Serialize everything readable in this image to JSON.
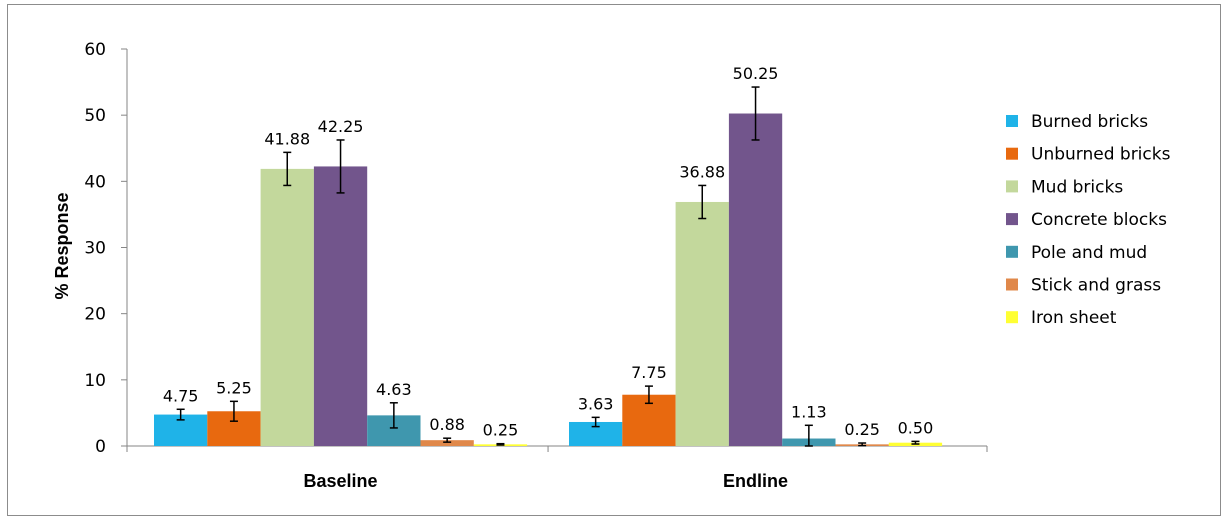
{
  "chart_data": {
    "type": "bar",
    "title": "",
    "xlabel": "",
    "ylabel": "% Response",
    "ylim": [
      0,
      60
    ],
    "yticks": [
      0,
      10,
      20,
      30,
      40,
      50,
      60
    ],
    "categories": [
      "Baseline",
      "Endline"
    ],
    "grid": false,
    "legend_position": "right",
    "series": [
      {
        "name": "Burned bricks",
        "color": "#1fb3e8",
        "values": [
          4.75,
          3.63
        ],
        "labels": [
          "4.75",
          "3.63"
        ],
        "error": [
          0.8,
          0.7
        ]
      },
      {
        "name": "Unburned bricks",
        "color": "#e8690f",
        "values": [
          5.25,
          7.75
        ],
        "labels": [
          "5.25",
          "7.75"
        ],
        "error": [
          1.5,
          1.3
        ]
      },
      {
        "name": "Mud bricks",
        "color": "#c3d89c",
        "values": [
          41.88,
          36.88
        ],
        "labels": [
          "41.88",
          "36.88"
        ],
        "error": [
          2.5,
          2.5
        ]
      },
      {
        "name": "Concrete blocks",
        "color": "#72558c",
        "values": [
          42.25,
          50.25
        ],
        "labels": [
          "42.25",
          "50.25"
        ],
        "error": [
          4.0,
          4.0
        ]
      },
      {
        "name": "Pole and mud",
        "color": "#3f97ae",
        "values": [
          4.63,
          1.13
        ],
        "labels": [
          "4.63",
          "1.13"
        ],
        "error": [
          1.9,
          2.0
        ]
      },
      {
        "name": "Stick and grass",
        "color": "#e0884a",
        "values": [
          0.88,
          0.25
        ],
        "labels": [
          "0.88",
          "0.25"
        ],
        "error": [
          0.3,
          0.2
        ]
      },
      {
        "name": "Iron sheet",
        "color": "#ffff33",
        "values": [
          0.25,
          0.5
        ],
        "labels": [
          "0.25",
          "0.50"
        ],
        "error": [
          0.1,
          0.2
        ]
      }
    ]
  }
}
